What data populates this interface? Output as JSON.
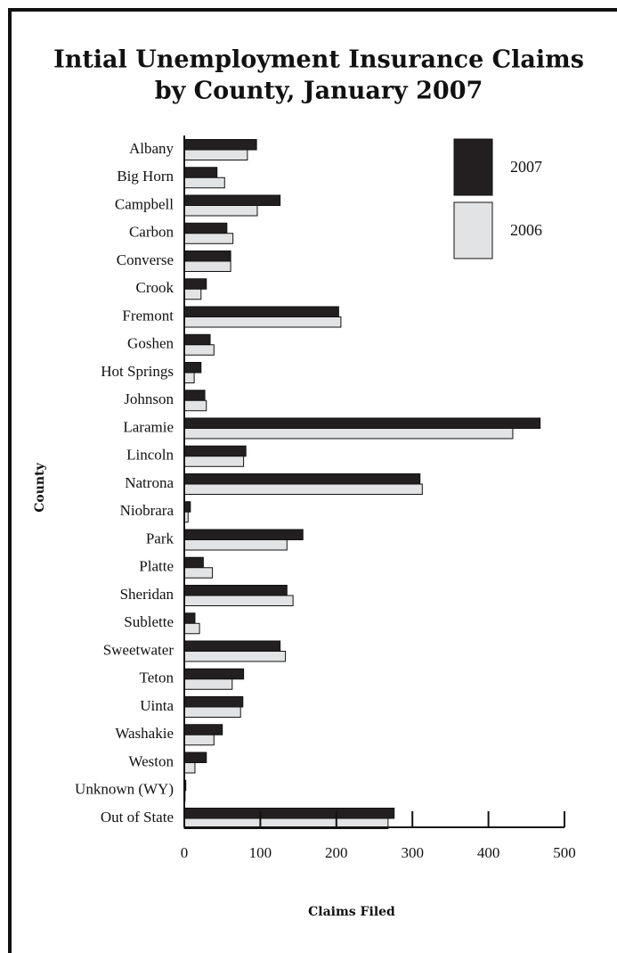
{
  "chart_data": {
    "type": "barh",
    "title": [
      "Intial Unemployment Insurance Claims",
      "by County, January 2007"
    ],
    "x_label": "Claims Filed",
    "y_label": "County",
    "categories": [
      "Albany",
      "Big Horn",
      "Campbell",
      "Carbon",
      "Converse",
      "Crook",
      "Fremont",
      "Goshen",
      "Hot Springs",
      "Johnson",
      "Laramie",
      "Lincoln",
      "Natrona",
      "Niobrara",
      "Park",
      "Platte",
      "Sheridan",
      "Sublette",
      "Sweetwater",
      "Teton",
      "Uinta",
      "Washakie",
      "Weston",
      "Unknown (WY)",
      "Out of State"
    ],
    "series": [
      {
        "name": "2007",
        "color": "#231f20",
        "values": [
          95,
          43,
          126,
          56,
          61,
          29,
          203,
          34,
          22,
          27,
          468,
          81,
          310,
          8,
          156,
          25,
          135,
          14,
          126,
          78,
          77,
          50,
          29,
          2,
          276
        ]
      },
      {
        "name": "2006",
        "color": "#e2e3e4",
        "values": [
          83,
          53,
          96,
          64,
          61,
          22,
          206,
          39,
          13,
          29,
          432,
          78,
          313,
          5,
          135,
          37,
          143,
          20,
          133,
          63,
          74,
          39,
          14,
          1,
          268
        ]
      }
    ],
    "xlim": [
      0,
      500
    ],
    "xticks": [
      0,
      100,
      200,
      300,
      400,
      500
    ]
  }
}
